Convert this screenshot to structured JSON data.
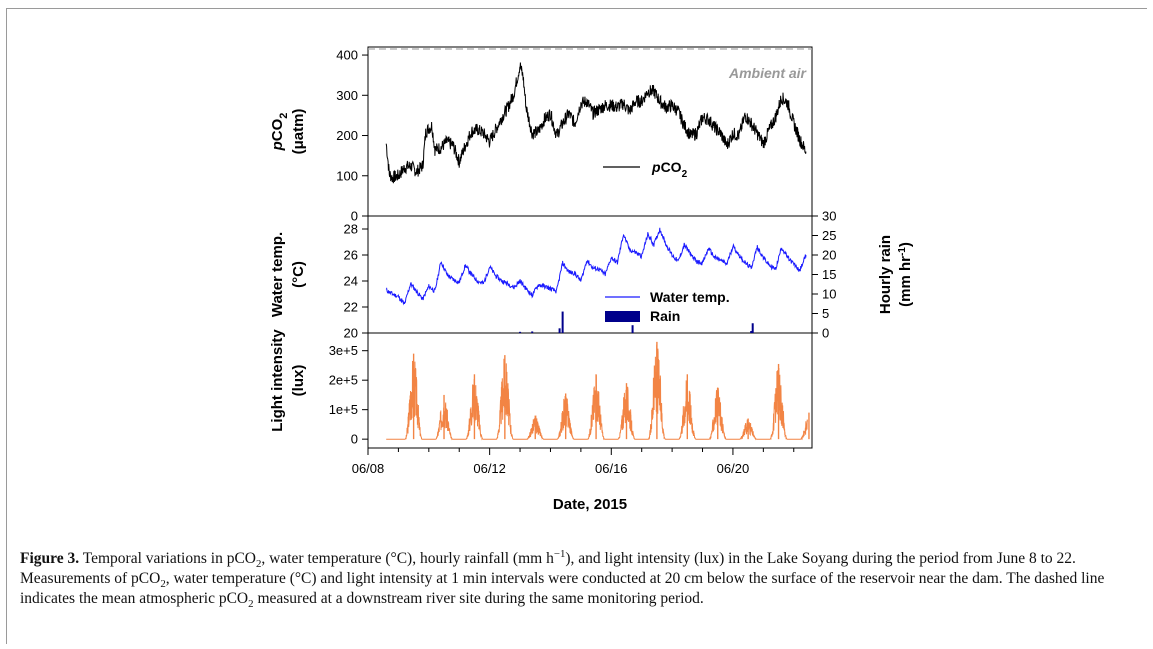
{
  "chart_data": [
    {
      "type": "line",
      "panel": "top",
      "ylabel_italic": "p",
      "ylabel_main": "CO",
      "ylabel_sub": "2",
      "ylabel_unit": "(μatm)",
      "ylim": [
        0,
        420
      ],
      "yticks": [
        0,
        100,
        200,
        300,
        400
      ],
      "ambient": {
        "value": 415,
        "label": "Ambient air",
        "color": "#aaaaaa"
      },
      "series": [
        {
          "name_italic": "p",
          "name_main": "CO",
          "name_sub": "2",
          "color": "#000000",
          "x": [
            8.6,
            8.7,
            8.8,
            9.0,
            9.2,
            9.4,
            9.6,
            9.8,
            9.9,
            10.1,
            10.2,
            10.4,
            10.6,
            10.8,
            11.0,
            11.2,
            11.4,
            11.6,
            11.8,
            12.0,
            12.2,
            12.4,
            12.6,
            12.8,
            13.0,
            13.1,
            13.2,
            13.4,
            13.6,
            13.8,
            14.0,
            14.2,
            14.4,
            14.6,
            14.8,
            15.0,
            15.2,
            15.4,
            15.6,
            15.8,
            16.0,
            16.2,
            16.4,
            16.6,
            16.8,
            17.0,
            17.2,
            17.4,
            17.6,
            17.8,
            18.0,
            18.2,
            18.4,
            18.6,
            18.8,
            19.0,
            19.2,
            19.4,
            19.6,
            19.8,
            20.0,
            20.2,
            20.4,
            20.6,
            20.8,
            21.0,
            21.2,
            21.4,
            21.6,
            21.8,
            22.0,
            22.2,
            22.4
          ],
          "values": [
            180,
            105,
            95,
            100,
            120,
            125,
            110,
            125,
            210,
            225,
            165,
            170,
            185,
            175,
            135,
            175,
            210,
            215,
            205,
            185,
            215,
            245,
            270,
            305,
            375,
            345,
            270,
            205,
            210,
            240,
            255,
            200,
            230,
            255,
            230,
            280,
            285,
            255,
            265,
            275,
            275,
            270,
            280,
            260,
            285,
            285,
            310,
            310,
            285,
            270,
            275,
            260,
            225,
            200,
            205,
            245,
            240,
            220,
            205,
            175,
            205,
            200,
            250,
            230,
            205,
            180,
            215,
            245,
            295,
            280,
            230,
            190,
            160
          ]
        }
      ]
    },
    {
      "type": "line",
      "panel": "middle",
      "ylabel_line1": "Water temp.",
      "ylabel_line2": "(°C)",
      "ylim": [
        20,
        29
      ],
      "yticks": [
        20,
        22,
        24,
        26,
        28
      ],
      "y2label_line1": "Hourly rain",
      "y2label_line2": "(mm hr",
      "y2label_sup": "-1",
      "y2label_close": ")",
      "y2lim": [
        0,
        30
      ],
      "y2ticks": [
        0,
        5,
        10,
        15,
        20,
        25,
        30
      ],
      "series": [
        {
          "name": "Water temp.",
          "color": "#1a1aff",
          "x": [
            8.6,
            8.8,
            9.0,
            9.2,
            9.4,
            9.6,
            9.8,
            10.0,
            10.2,
            10.4,
            10.6,
            10.8,
            11.0,
            11.2,
            11.4,
            11.6,
            11.8,
            12.0,
            12.2,
            12.4,
            12.6,
            12.8,
            13.0,
            13.2,
            13.4,
            13.6,
            13.8,
            14.0,
            14.2,
            14.4,
            14.6,
            14.8,
            15.0,
            15.2,
            15.4,
            15.6,
            15.8,
            16.0,
            16.2,
            16.4,
            16.6,
            16.8,
            17.0,
            17.2,
            17.4,
            17.6,
            17.8,
            18.0,
            18.2,
            18.4,
            18.6,
            18.8,
            19.0,
            19.2,
            19.4,
            19.6,
            19.8,
            20.0,
            20.2,
            20.4,
            20.6,
            20.8,
            21.0,
            21.2,
            21.4,
            21.6,
            21.8,
            22.0,
            22.2,
            22.4
          ],
          "values": [
            23.3,
            23.0,
            22.8,
            22.2,
            23.8,
            23.2,
            22.6,
            23.6,
            23.2,
            25.5,
            24.5,
            24.1,
            23.9,
            25.2,
            24.5,
            24.0,
            23.8,
            25.1,
            24.4,
            24.0,
            23.8,
            23.5,
            24.0,
            23.4,
            22.9,
            23.7,
            23.6,
            23.4,
            23.2,
            25.4,
            24.7,
            24.6,
            24.0,
            25.6,
            25.0,
            24.9,
            24.5,
            25.8,
            25.4,
            27.6,
            26.4,
            26.2,
            25.9,
            27.6,
            26.8,
            28.0,
            26.8,
            26.0,
            25.5,
            26.8,
            26.1,
            25.5,
            25.4,
            26.5,
            25.8,
            25.6,
            25.3,
            26.7,
            26.0,
            25.4,
            25.0,
            26.6,
            25.8,
            25.2,
            24.9,
            26.6,
            25.8,
            25.3,
            24.8,
            26.0
          ]
        },
        {
          "name": "Rain",
          "color": "#00008b",
          "type": "bar",
          "x": [
            13.0,
            13.4,
            14.3,
            14.4,
            16.7,
            20.6,
            20.65
          ],
          "values": [
            0.3,
            0.4,
            1.2,
            5.5,
            2.0,
            0.5,
            2.5
          ]
        }
      ]
    },
    {
      "type": "line",
      "panel": "bottom",
      "ylabel_line1": "Light intensity",
      "ylabel_line2": "(lux)",
      "ylim": [
        -30000,
        360000
      ],
      "yticks": [
        0,
        100000,
        200000,
        300000
      ],
      "yticklabels": [
        "0",
        "1e+5",
        "2e+5",
        "3e+5"
      ],
      "series": [
        {
          "color": "#f28444",
          "peaks_x": [
            9.5,
            10.5,
            11.5,
            12.5,
            13.5,
            14.5,
            15.5,
            16.5,
            17.5,
            18.5,
            19.5,
            20.5,
            21.5,
            22.5
          ],
          "peaks_values": [
            290000,
            150000,
            220000,
            285000,
            80000,
            155000,
            220000,
            190000,
            330000,
            220000,
            175000,
            70000,
            255000,
            90000
          ],
          "start_x": 8.6,
          "end_x": 22.45
        }
      ]
    },
    {
      "panel": "x-axis",
      "xlabel": "Date, 2015",
      "xlim": [
        8.0,
        22.6
      ],
      "xticks": [
        8,
        12,
        16,
        20
      ],
      "xticklabels": [
        "06/08",
        "06/12",
        "06/16",
        "06/20"
      ],
      "minor_xticks": [
        9,
        10,
        11,
        13,
        14,
        15,
        17,
        18,
        19,
        21,
        22
      ]
    }
  ],
  "caption": {
    "label": "Figure 3.",
    "p1": " Temporal variations in pCO",
    "s1": "2",
    "p2": ", water temperature (°C), hourly rainfall (mm h",
    "sup1": "−1",
    "p3": "), and light intensity (lux) in the Lake Soyang during the period from June 8 to 22. Measurements of pCO",
    "s2": "2",
    "p4": ", water temperature (°C) and light intensity at 1 min intervals were conducted at 20 cm below the surface of the reservoir near the dam. The dashed line indicates the mean atmospheric pCO",
    "s3": "2",
    "p5": " measured at a downstream river site during the same monitoring period."
  }
}
